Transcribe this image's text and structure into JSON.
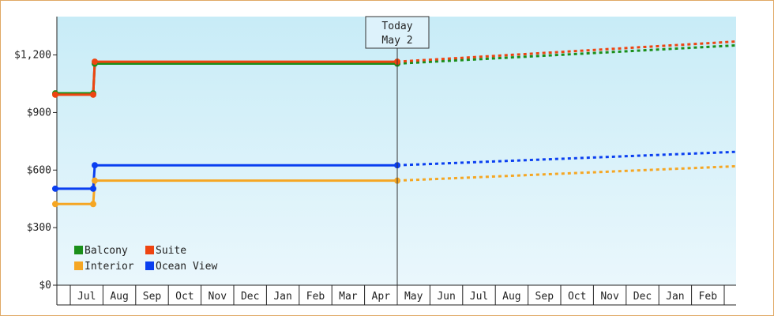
{
  "chart_data": {
    "type": "line",
    "title": "",
    "xlabel": "",
    "ylabel": "",
    "ylim": [
      0,
      1400
    ],
    "y_ticks": [
      0,
      300,
      600,
      900,
      1200
    ],
    "y_tick_labels": [
      "$0",
      "$300",
      "$600",
      "$900",
      "$1,200"
    ],
    "month_labels": [
      "Jul",
      "Aug",
      "Sep",
      "Oct",
      "Nov",
      "Dec",
      "Jan",
      "Feb",
      "Mar",
      "Apr",
      "May",
      "Jun",
      "Jul",
      "Aug",
      "Sep",
      "Oct",
      "Nov",
      "Dec",
      "Jan",
      "Feb"
    ],
    "today_marker": {
      "line1": "Today",
      "line2": "May 2"
    },
    "background": "light-blue gradient",
    "grid": false,
    "legend_position": "bottom-left",
    "series": [
      {
        "name": "Balcony",
        "color": "#1a8f1a",
        "history": [
          {
            "x": "start",
            "y": 1000
          },
          {
            "x": "Jul 18",
            "y": 1000
          },
          {
            "x": "Jul 19",
            "y": 1155
          },
          {
            "x": "May 2",
            "y": 1155
          }
        ],
        "forecast": [
          {
            "x": "May 2",
            "y": 1155
          },
          {
            "x": "end",
            "y": 1250
          }
        ]
      },
      {
        "name": "Suite",
        "color": "#ee4411",
        "history": [
          {
            "x": "start",
            "y": 993
          },
          {
            "x": "Jul 18",
            "y": 993
          },
          {
            "x": "Jul 19",
            "y": 1165
          },
          {
            "x": "May 2",
            "y": 1165
          }
        ],
        "forecast": [
          {
            "x": "May 2",
            "y": 1165
          },
          {
            "x": "end",
            "y": 1270
          }
        ]
      },
      {
        "name": "Interior",
        "color": "#f5a623",
        "history": [
          {
            "x": "start",
            "y": 423
          },
          {
            "x": "Jul 18",
            "y": 423
          },
          {
            "x": "Jul 19",
            "y": 545
          },
          {
            "x": "May 2",
            "y": 545
          }
        ],
        "forecast": [
          {
            "x": "May 2",
            "y": 545
          },
          {
            "x": "end",
            "y": 620
          }
        ]
      },
      {
        "name": "Ocean View",
        "color": "#0a3ff0",
        "history": [
          {
            "x": "start",
            "y": 503
          },
          {
            "x": "Jul 18",
            "y": 503
          },
          {
            "x": "Jul 19",
            "y": 625
          },
          {
            "x": "May 2",
            "y": 625
          }
        ],
        "forecast": [
          {
            "x": "May 2",
            "y": 625
          },
          {
            "x": "end",
            "y": 695
          }
        ]
      }
    ]
  }
}
